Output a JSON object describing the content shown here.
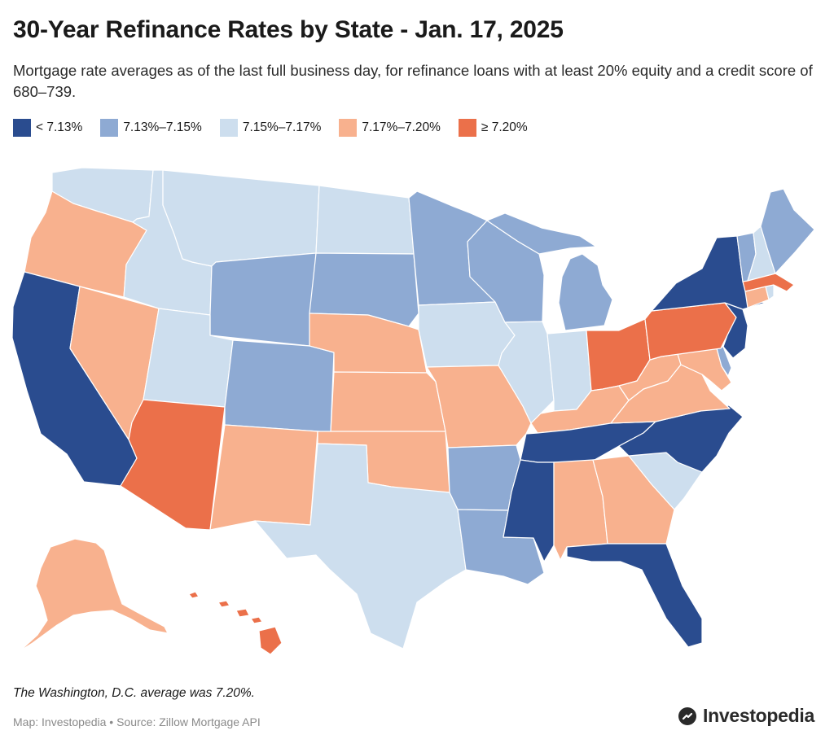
{
  "header": {
    "title": "30-Year Refinance Rates by State - Jan. 17, 2025",
    "subtitle": "Mortgage rate averages as of the last full business day, for refinance loans with at least 20% equity and a credit score of 680–739."
  },
  "legend": [
    {
      "label": "< 7.13%",
      "color": "#2a4c8f"
    },
    {
      "label": "7.13%–7.15%",
      "color": "#8eaad3"
    },
    {
      "label": "7.15%–7.17%",
      "color": "#cddeee"
    },
    {
      "label": "7.17%–7.20%",
      "color": "#f8b18e"
    },
    {
      "label": "≥ 7.20%",
      "color": "#eb704a"
    }
  ],
  "map": {
    "states": [
      {
        "name": "Washington",
        "bin": 2
      },
      {
        "name": "Oregon",
        "bin": 3
      },
      {
        "name": "California",
        "bin": 0
      },
      {
        "name": "Nevada",
        "bin": 3
      },
      {
        "name": "Idaho",
        "bin": 2
      },
      {
        "name": "Montana",
        "bin": 2
      },
      {
        "name": "Wyoming",
        "bin": 1
      },
      {
        "name": "Utah",
        "bin": 2
      },
      {
        "name": "Arizona",
        "bin": 4
      },
      {
        "name": "Colorado",
        "bin": 1
      },
      {
        "name": "New Mexico",
        "bin": 3
      },
      {
        "name": "North Dakota",
        "bin": 2
      },
      {
        "name": "South Dakota",
        "bin": 1
      },
      {
        "name": "Nebraska",
        "bin": 3
      },
      {
        "name": "Kansas",
        "bin": 3
      },
      {
        "name": "Oklahoma",
        "bin": 3
      },
      {
        "name": "Texas",
        "bin": 2
      },
      {
        "name": "Minnesota",
        "bin": 1
      },
      {
        "name": "Iowa",
        "bin": 2
      },
      {
        "name": "Missouri",
        "bin": 3
      },
      {
        "name": "Arkansas",
        "bin": 1
      },
      {
        "name": "Louisiana",
        "bin": 1
      },
      {
        "name": "Wisconsin",
        "bin": 1
      },
      {
        "name": "Illinois",
        "bin": 2
      },
      {
        "name": "Michigan",
        "bin": 1
      },
      {
        "name": "Indiana",
        "bin": 2
      },
      {
        "name": "Ohio",
        "bin": 4
      },
      {
        "name": "Kentucky",
        "bin": 3
      },
      {
        "name": "Tennessee",
        "bin": 0
      },
      {
        "name": "Mississippi",
        "bin": 0
      },
      {
        "name": "Alabama",
        "bin": 3
      },
      {
        "name": "Georgia",
        "bin": 3
      },
      {
        "name": "Florida",
        "bin": 0
      },
      {
        "name": "South Carolina",
        "bin": 2
      },
      {
        "name": "North Carolina",
        "bin": 0
      },
      {
        "name": "Virginia",
        "bin": 3
      },
      {
        "name": "West Virginia",
        "bin": 3
      },
      {
        "name": "Maryland",
        "bin": 3
      },
      {
        "name": "Delaware",
        "bin": 1
      },
      {
        "name": "Pennsylvania",
        "bin": 4
      },
      {
        "name": "New Jersey",
        "bin": 0
      },
      {
        "name": "New York",
        "bin": 0
      },
      {
        "name": "Connecticut",
        "bin": 3
      },
      {
        "name": "Rhode Island",
        "bin": 2
      },
      {
        "name": "Massachusetts",
        "bin": 4
      },
      {
        "name": "Vermont",
        "bin": 1
      },
      {
        "name": "New Hampshire",
        "bin": 2
      },
      {
        "name": "Maine",
        "bin": 1
      },
      {
        "name": "Alaska",
        "bin": 3
      },
      {
        "name": "Hawaii",
        "bin": 4
      }
    ]
  },
  "footer": {
    "note": "The Washington, D.C. average was 7.20%.",
    "source": "Map: Investopedia • Source: Zillow Mortgage API",
    "brand": "Investopedia"
  }
}
